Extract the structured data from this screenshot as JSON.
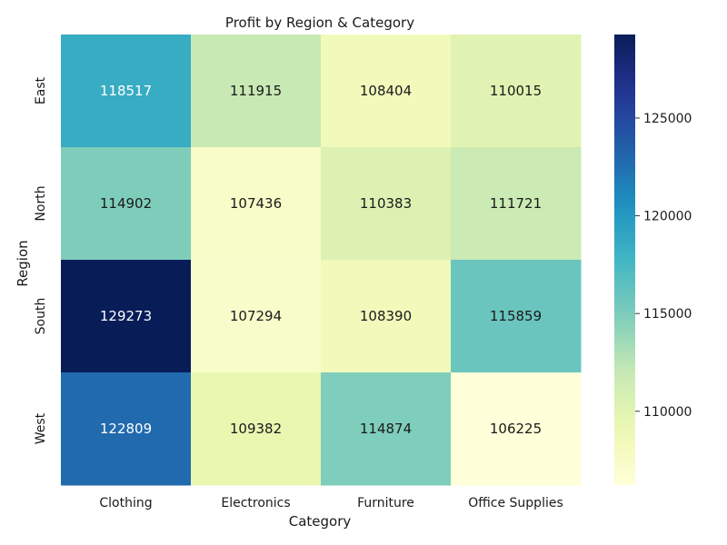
{
  "chart_data": {
    "type": "heatmap",
    "title": "Profit by Region & Category",
    "xlabel": "Category",
    "ylabel": "Region",
    "x_categories": [
      "Clothing",
      "Electronics",
      "Furniture",
      "Office Supplies"
    ],
    "y_categories": [
      "East",
      "North",
      "South",
      "West"
    ],
    "values": [
      [
        118517,
        111915,
        108404,
        110015
      ],
      [
        114902,
        107436,
        110383,
        111721
      ],
      [
        129273,
        107294,
        108390,
        115859
      ],
      [
        122809,
        109382,
        114874,
        106225
      ]
    ],
    "colormap": "YlGnBu",
    "colorbar": {
      "range": [
        106225,
        129273
      ],
      "ticks": [
        110000,
        115000,
        120000,
        125000
      ]
    },
    "annotations": true,
    "grid": false
  }
}
